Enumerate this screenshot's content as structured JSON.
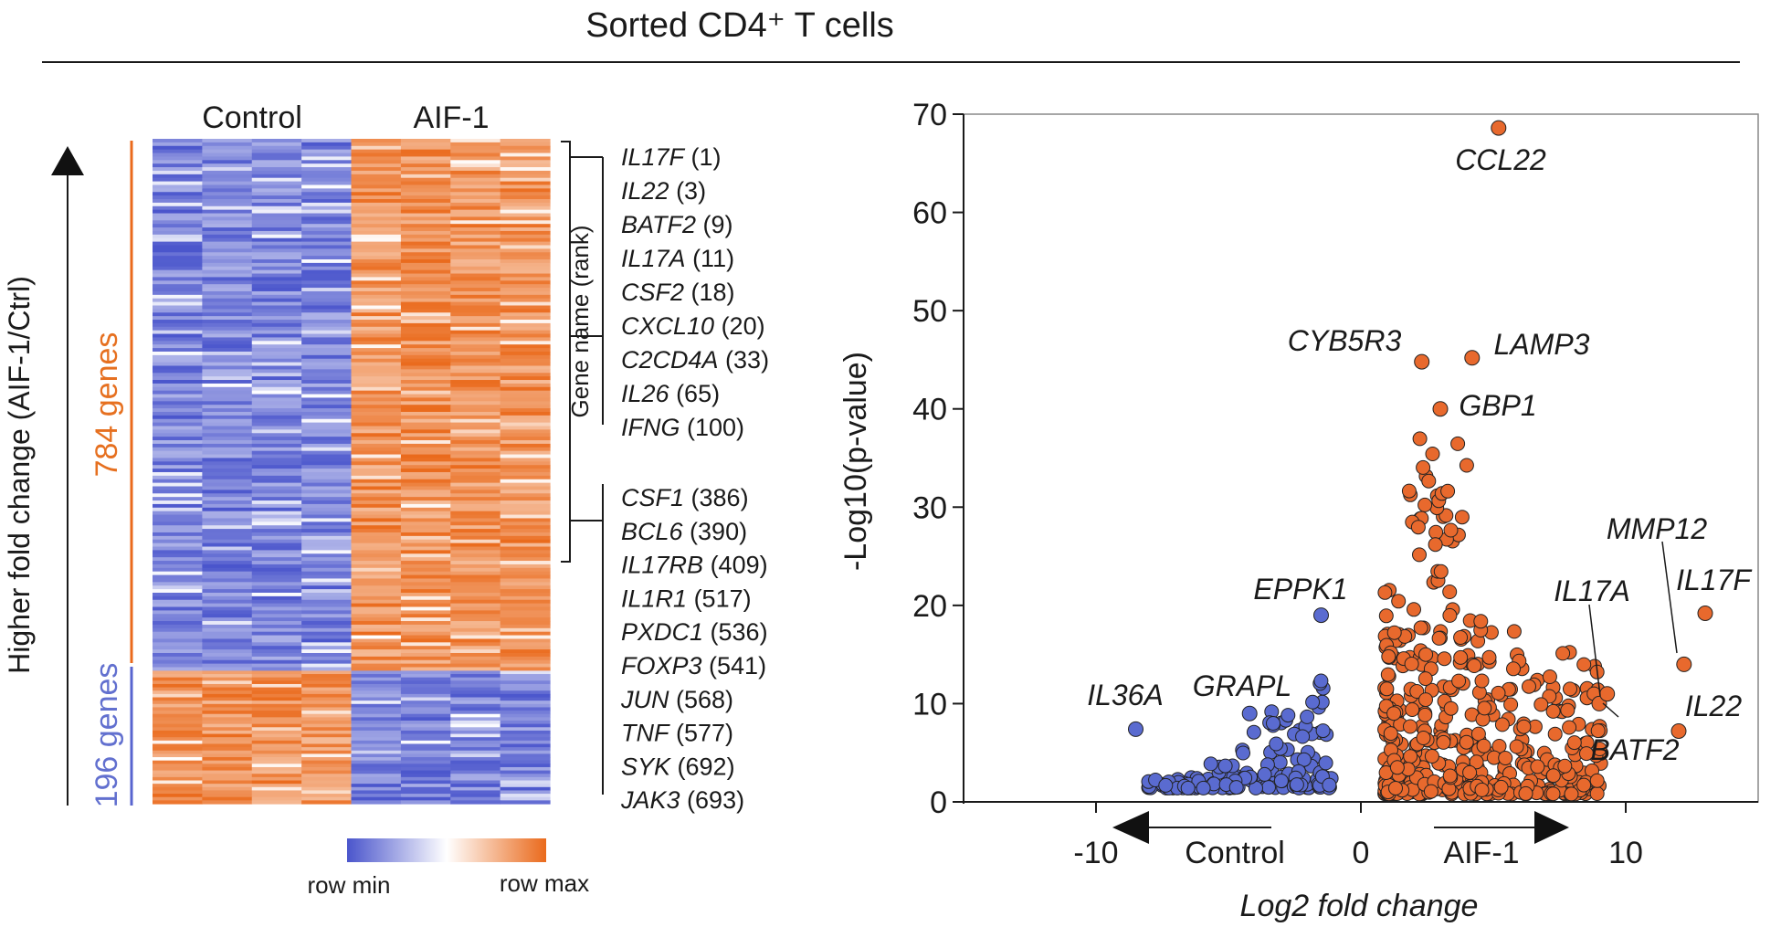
{
  "figure": {
    "title": "Sorted CD4⁺ T cells"
  },
  "colors": {
    "up": "#ea6a1c",
    "down": "#5865cf",
    "mid": "#ffffff",
    "dot_up": "#e8692d",
    "dot_down": "#5a6bd0",
    "up_label": "#e67020",
    "down_label": "#6270cf"
  },
  "chart_data": [
    {
      "type": "heatmap",
      "columns": [
        "Control",
        "AIF-1"
      ],
      "y_axis_label": "Higher fold change (AIF-1/Ctrl)",
      "up_group": {
        "label": "784 genes",
        "count": 784
      },
      "down_group": {
        "label": "196 genes",
        "count": 196
      },
      "bracket_label": "Gene name (rank)",
      "genes": [
        {
          "name": "IL17F",
          "rank": "(1)"
        },
        {
          "name": "IL22",
          "rank": "(3)"
        },
        {
          "name": "BATF2",
          "rank": "(9)"
        },
        {
          "name": "IL17A",
          "rank": "(11)"
        },
        {
          "name": "CSF2",
          "rank": "(18)"
        },
        {
          "name": "CXCL10",
          "rank": "(20)"
        },
        {
          "name": "C2CD4A",
          "rank": "(33)"
        },
        {
          "name": "IL26",
          "rank": "(65)"
        },
        {
          "name": "IFNG",
          "rank": "(100)"
        },
        {
          "name": "CSF1",
          "rank": "(386)"
        },
        {
          "name": "BCL6",
          "rank": "(390)"
        },
        {
          "name": "IL17RB",
          "rank": "(409)"
        },
        {
          "name": "IL1R1",
          "rank": "(517)"
        },
        {
          "name": "PXDC1",
          "rank": "(536)"
        },
        {
          "name": "FOXP3",
          "rank": "(541)"
        },
        {
          "name": "JUN",
          "rank": "(568)"
        },
        {
          "name": "TNF",
          "rank": "(577)"
        },
        {
          "name": "SYK",
          "rank": "(692)"
        },
        {
          "name": "JAK3",
          "rank": "(693)"
        }
      ],
      "colorbar": {
        "min_label": "row min",
        "max_label": "row max"
      }
    },
    {
      "type": "scatter",
      "xlabel": "Log2 fold change",
      "ylabel": "-Log10(p-value)",
      "xlim": [
        -15,
        15
      ],
      "ylim": [
        0,
        70
      ],
      "xticks": [
        "-10",
        "0",
        "10"
      ],
      "yticks": [
        "0",
        "10",
        "20",
        "30",
        "40",
        "50",
        "60",
        "70"
      ],
      "direction_labels": {
        "left": "Control",
        "right": "AIF-1"
      },
      "labeled_points": [
        {
          "gene": "CCL22",
          "x": 5.2,
          "y": 68.6,
          "group": "up"
        },
        {
          "gene": "CYB5R3",
          "x": 2.3,
          "y": 44.8,
          "group": "up"
        },
        {
          "gene": "LAMP3",
          "x": 4.2,
          "y": 45.2,
          "group": "up"
        },
        {
          "gene": "GBP1",
          "x": 3.0,
          "y": 40.0,
          "group": "up"
        },
        {
          "gene": "MMP12",
          "x": 12.2,
          "y": 14.0,
          "group": "up"
        },
        {
          "gene": "IL17F",
          "x": 13.0,
          "y": 19.2,
          "group": "up"
        },
        {
          "gene": "IL17A",
          "x": 9.0,
          "y": 10.0,
          "group": "up"
        },
        {
          "gene": "IL22",
          "x": 12.0,
          "y": 7.2,
          "group": "up"
        },
        {
          "gene": "BATF2",
          "x": 9.3,
          "y": 11.0,
          "group": "up"
        },
        {
          "gene": "EPPK1",
          "x": -1.5,
          "y": 19.0,
          "group": "down"
        },
        {
          "gene": "GRAPL",
          "x": -4.2,
          "y": 9.0,
          "group": "down"
        },
        {
          "gene": "IL36A",
          "x": -8.5,
          "y": 7.4,
          "group": "down"
        }
      ]
    }
  ]
}
